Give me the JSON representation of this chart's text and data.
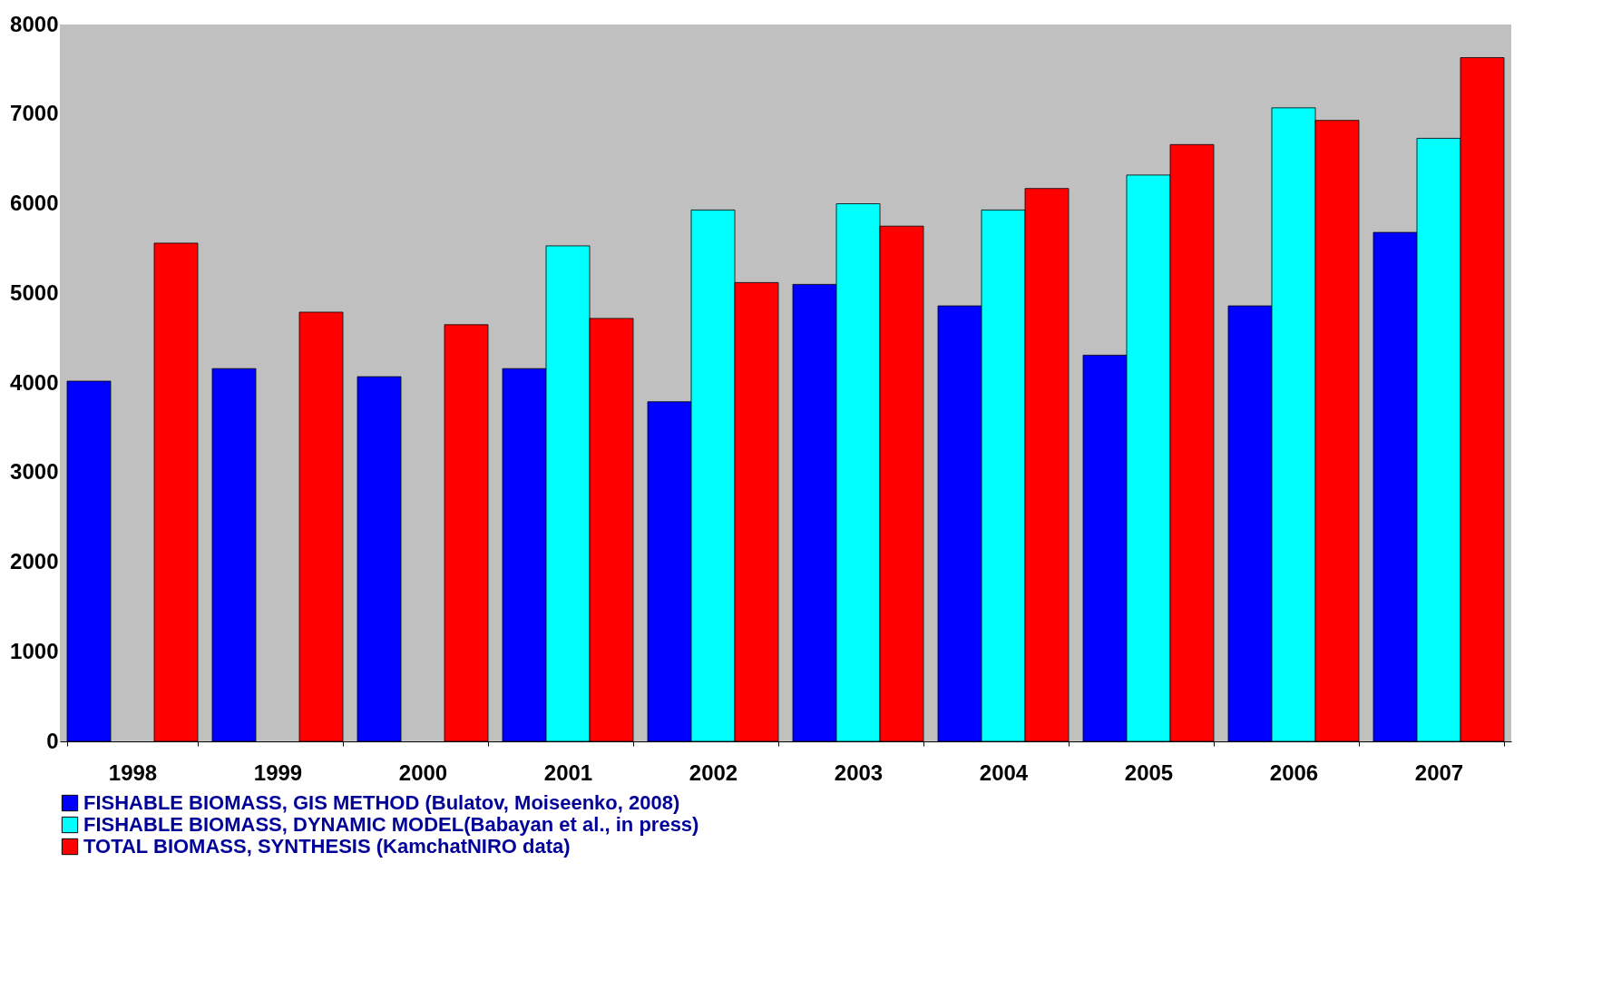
{
  "chart_data": {
    "type": "bar",
    "categories": [
      "1998",
      "1999",
      "2000",
      "2001",
      "2002",
      "2003",
      "2004",
      "2005",
      "2006",
      "2007"
    ],
    "series": [
      {
        "name": "FISHABLE BIOMASS, GIS METHOD (Bulatov, Moiseenko, 2008)",
        "color": "#0000ff",
        "values": [
          4020,
          4160,
          4070,
          4160,
          3790,
          5100,
          4860,
          4310,
          4860,
          5680
        ]
      },
      {
        "name": "FISHABLE BIOMASS, DYNAMIC MODEL(Babayan et al., in press)",
        "color": "#00ffff",
        "values": [
          null,
          null,
          null,
          5530,
          5930,
          6000,
          5930,
          6320,
          7070,
          6730
        ]
      },
      {
        "name": "TOTAL BIOMASS, SYNTHESIS (KamchatNIRO data)",
        "color": "#ff0000",
        "values": [
          5560,
          4790,
          4650,
          4720,
          5120,
          5750,
          6170,
          6660,
          6930,
          7630
        ]
      }
    ],
    "ylim": [
      0,
      8000
    ],
    "yticks": [
      0,
      1000,
      2000,
      3000,
      4000,
      5000,
      6000,
      7000,
      8000
    ],
    "grid": false,
    "legend": "bottom"
  }
}
